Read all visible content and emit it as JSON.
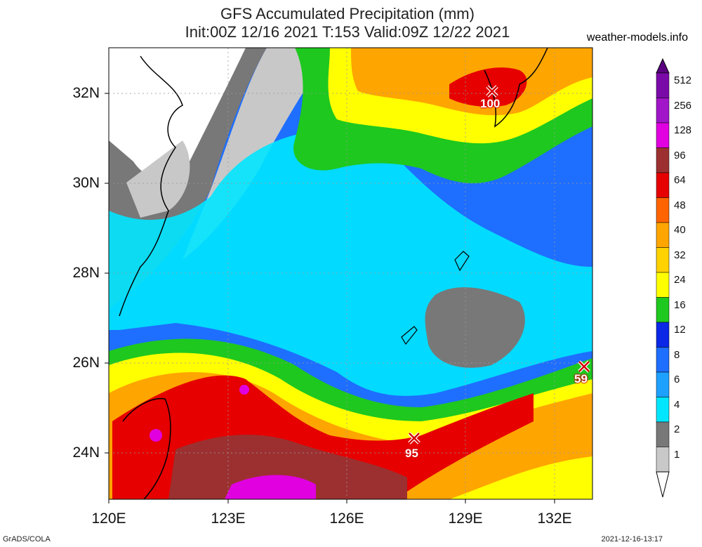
{
  "title": {
    "line1": "GFS Accumulated Precipitation (mm)",
    "line2": "Init:00Z 12/16 2021 T:153 Valid:09Z 12/22 2021"
  },
  "brand": "weather-models.info",
  "footer": {
    "left": "GrADS/COLA",
    "right": "2021-12-16-13:17"
  },
  "lat_labels": [
    "32N",
    "30N",
    "28N",
    "26N",
    "24N"
  ],
  "lon_labels": [
    "120E",
    "123E",
    "126E",
    "129E",
    "132E"
  ],
  "colorbar": {
    "labels": [
      "512",
      "256",
      "128",
      "96",
      "64",
      "48",
      "40",
      "32",
      "24",
      "16",
      "12",
      "8",
      "6",
      "4",
      "2",
      "1"
    ],
    "colors": [
      "#7a0aa8",
      "#a016c8",
      "#e000e0",
      "#9c3030",
      "#e60000",
      "#ff6400",
      "#ffa500",
      "#ffd200",
      "#ffff00",
      "#1ec81e",
      "#0a28e6",
      "#1e6eff",
      "#1ea0ff",
      "#00e6ff",
      "#787878",
      "#c8c8c8"
    ]
  },
  "maxima": [
    {
      "value": "100"
    },
    {
      "value": "59"
    },
    {
      "value": "95"
    }
  ]
}
